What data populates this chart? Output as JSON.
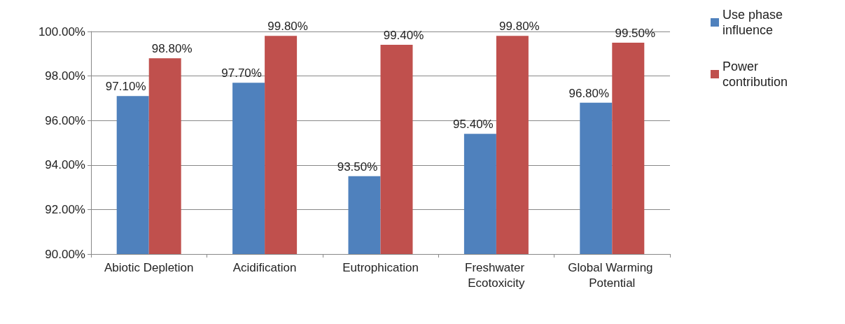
{
  "chart_data": {
    "type": "bar",
    "categories": [
      "Abiotic Depletion",
      "Acidification",
      "Eutrophication",
      "Freshwater Ecotoxicity",
      "Global Warming Potential"
    ],
    "series": [
      {
        "name": "Use phase influence",
        "color": "#4f81bd",
        "values": [
          97.1,
          97.7,
          93.5,
          95.4,
          96.8
        ],
        "value_labels": [
          "97.10%",
          "97.70%",
          "93.50%",
          "95.40%",
          "96.80%"
        ]
      },
      {
        "name": "Power contribution",
        "color": "#c0504d",
        "values": [
          98.8,
          99.8,
          99.4,
          99.8,
          99.5
        ],
        "value_labels": [
          "98.80%",
          "99.80%",
          "99.40%",
          "99.80%",
          "99.50%"
        ]
      }
    ],
    "ylim": [
      90,
      100
    ],
    "yticks": [
      {
        "value": 90,
        "label": "90.00%"
      },
      {
        "value": 92,
        "label": "92.00%"
      },
      {
        "value": 94,
        "label": "94.00%"
      },
      {
        "value": 96,
        "label": "96.00%"
      },
      {
        "value": 98,
        "label": "98.00%"
      },
      {
        "value": 100,
        "label": "100.00%"
      }
    ],
    "grid": "y",
    "legend": "top right"
  }
}
